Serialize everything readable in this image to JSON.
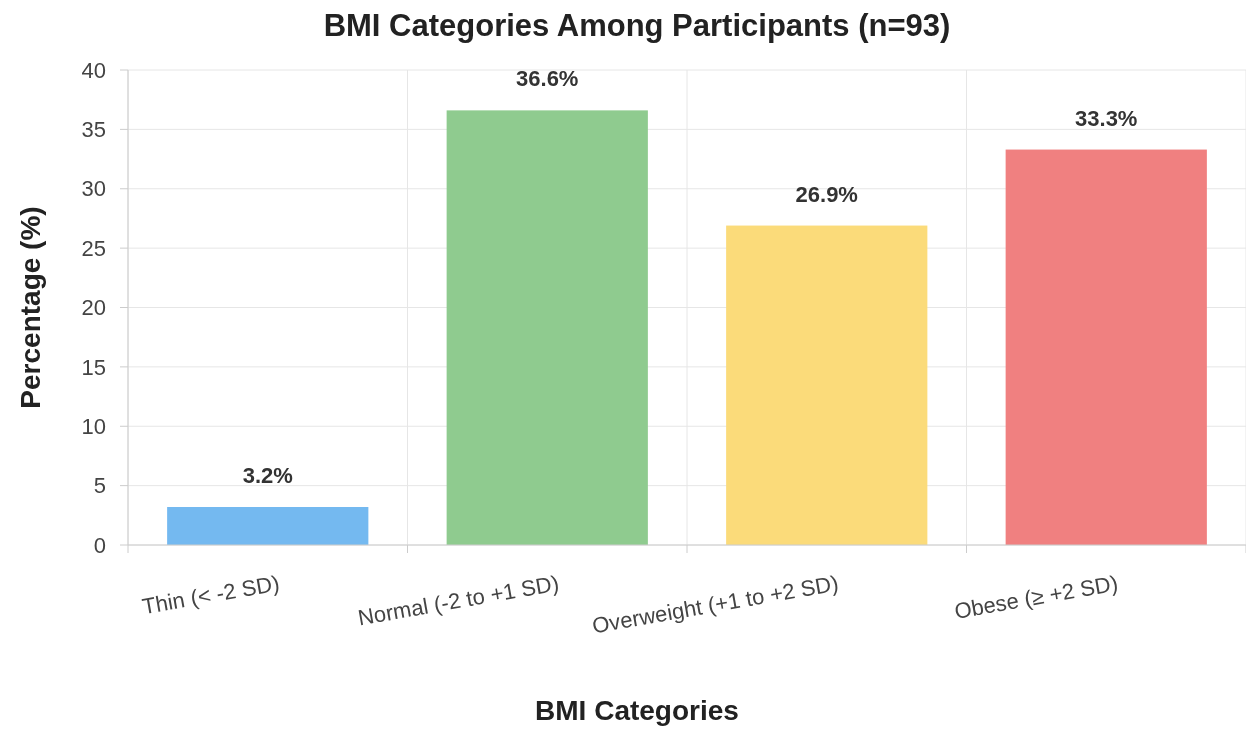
{
  "chart_data": {
    "type": "bar",
    "title": "BMI Categories Among Participants (n=93)",
    "xlabel": "BMI Categories",
    "ylabel": "Percentage (%)",
    "categories": [
      "Thin (< -2 SD)",
      "Normal (-2 to +1 SD)",
      "Overweight (+1 to +2 SD)",
      "Obese (≥ +2 SD)"
    ],
    "values": [
      3.2,
      36.6,
      26.9,
      33.3
    ],
    "colors": [
      "#74b9f0",
      "#8fcb8f",
      "#fbdb7a",
      "#f08080"
    ],
    "value_labels": [
      "3.2%",
      "36.6%",
      "26.9%",
      "33.3%"
    ],
    "ylim": [
      0,
      40
    ],
    "yticks": [
      0,
      5,
      10,
      15,
      20,
      25,
      30,
      35,
      40
    ],
    "grid": true
  }
}
